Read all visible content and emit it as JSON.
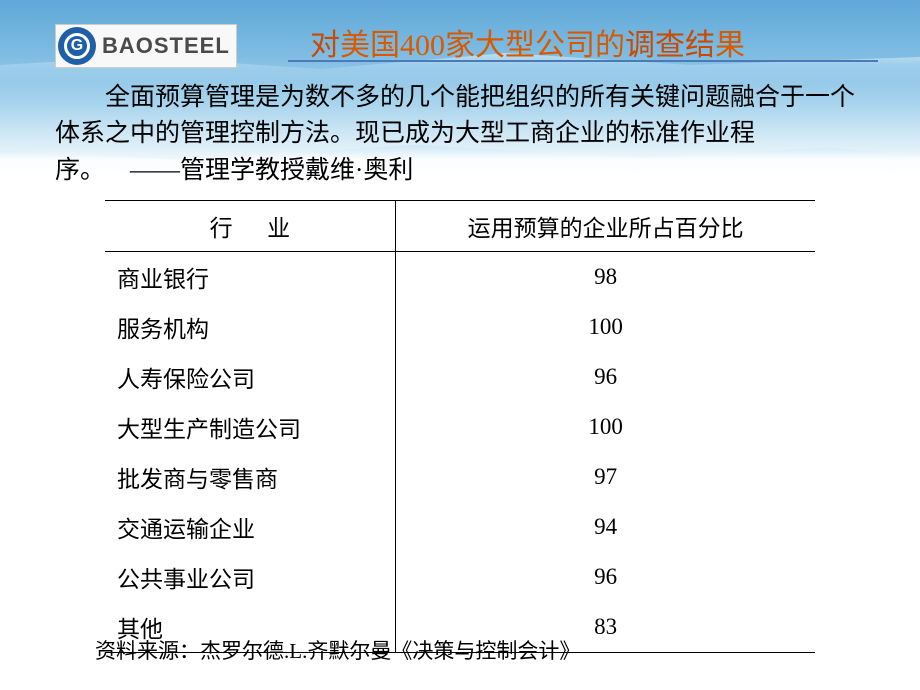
{
  "logo": {
    "symbol": "G",
    "text": "BAOSTEEL",
    "circle_color": "#1e5fa8",
    "text_color": "#4a4a4a"
  },
  "title": {
    "part1": "对",
    "part2": "美国400家大型公司的",
    "part3": "调查结",
    "part4": "果",
    "underline_color": "#4a7ab8"
  },
  "body": {
    "text": "全面预算管理是为数不多的几个能把组织的所有关键问题融合于一个体系之中的管理控制方法。现已成为大型工商企业的标准作业程序。",
    "attribution": "——管理学教授戴维·奥利"
  },
  "table": {
    "columns": [
      "行业",
      "运用预算的企业所占百分比"
    ],
    "rows": [
      [
        "商业银行",
        "98"
      ],
      [
        "服务机构",
        "100"
      ],
      [
        "人寿保险公司",
        "96"
      ],
      [
        "大型生产制造公司",
        "100"
      ],
      [
        "批发商与零售商",
        "97"
      ],
      [
        "交通运输企业",
        "94"
      ],
      [
        "公共事业公司",
        "96"
      ],
      [
        "其他",
        "83"
      ]
    ],
    "border_color": "#000000",
    "font_size": 23
  },
  "source": {
    "label": "资料来源：",
    "text": "杰罗尔德.L.齐默尔曼《决策与控制会计》"
  },
  "colors": {
    "bg_gradient_top": "#5fa8d8",
    "bg_gradient_mid": "#a8d4ed",
    "bg_gradient_bottom": "#ffffff",
    "title_orange": "#c94a00",
    "text_black": "#000000"
  }
}
